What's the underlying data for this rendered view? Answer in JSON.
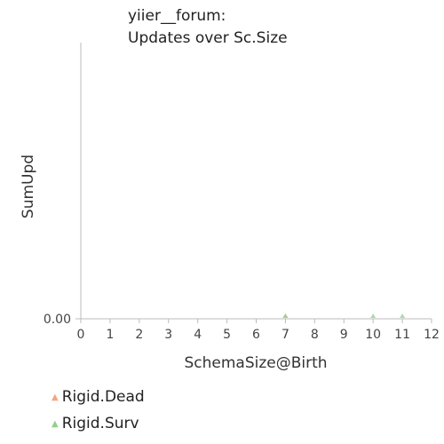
{
  "chart_data": {
    "type": "scatter",
    "title": [
      "yiier__forum:",
      "Updates over Sc.Size"
    ],
    "xlabel": "SchemaSize@Birth",
    "ylabel": "SumUpd",
    "xlim": [
      0,
      12
    ],
    "xticks": [
      "0",
      "1",
      "2",
      "3",
      "4",
      "5",
      "6",
      "7",
      "8",
      "9",
      "10",
      "11",
      "12"
    ],
    "yticks": [
      {
        "value": 0,
        "label": "0.00"
      }
    ],
    "grid": false,
    "legend_position": "bottom-left",
    "series": [
      {
        "name": "Rigid.Dead",
        "color": "#f4a582",
        "marker": "triangle",
        "points": [
          {
            "x": 7,
            "y": 0
          }
        ]
      },
      {
        "name": "Rigid.Surv",
        "color": "#8fd18a",
        "marker": "triangle",
        "points": [
          {
            "x": 7,
            "y": 0
          },
          {
            "x": 10,
            "y": 0
          },
          {
            "x": 11,
            "y": 0
          }
        ]
      }
    ]
  }
}
